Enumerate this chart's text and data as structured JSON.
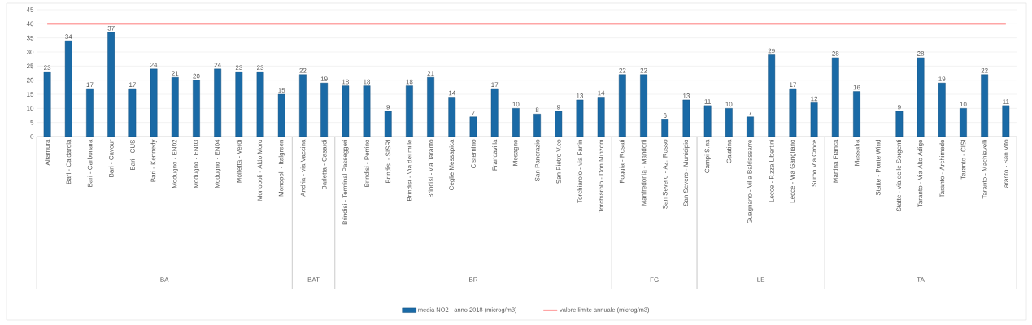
{
  "chart_data": {
    "type": "bar",
    "categories": [
      "Altamura",
      "Bari - Caldarola",
      "Bari - Carbonara",
      "Bari - Cavour",
      "Bari - CUS",
      "Bari - Kennedy",
      "Modugno - EN02",
      "Modugno - EN03",
      "Modugno - EN04",
      "Molfetta - Verdi",
      "Monopoli - Aldo Moro",
      "Monopoli - Italgreen",
      "Andria - via Vaccina",
      "Barletta - Casardi",
      "Brindisi - Terminal Passeggeri",
      "Brindisi - Perrino",
      "Brindisi - SISRI",
      "Brindisi - Via dei mille",
      "Brindisi - via Taranto",
      "Ceglie Messapica",
      "Cisternino",
      "Francavilla",
      "Mesagne",
      "San Pancrazio",
      "San Pietro V.co",
      "Torchiarolo - via Fanin",
      "Torchiarolo - Don Minzoni",
      "Foggia - Rosati",
      "Manfredonia - Mandorli",
      "San Severo - Az. Russo",
      "San Severo - Municipio",
      "Campi S.na",
      "Galatina",
      "Guagnano - Villa Baldassarre",
      "Lecce - P.zza Libertini",
      "Lecce - Via Garigliano",
      "Surbo Via Croce",
      "Martina Franca",
      "Massafra",
      "Statte - Ponte Wind",
      "Statte - via delle Sorgenti",
      "Taranto - Via Alto Adige",
      "Taranto - Archimede",
      "Taranto - CISI",
      "Taranto - Machiavelli",
      "Taranto - San Vito"
    ],
    "series": [
      {
        "name": "media NO2 - anno 2018 (microg/m3)",
        "color": "#1a6aa6",
        "values": [
          23,
          34,
          17,
          37,
          17,
          24,
          21,
          20,
          24,
          23,
          23,
          15,
          22,
          19,
          18,
          18,
          9,
          18,
          21,
          14,
          7,
          17,
          10,
          8,
          9,
          13,
          14,
          22,
          22,
          6,
          13,
          11,
          10,
          7,
          29,
          17,
          12,
          28,
          16,
          null,
          9,
          28,
          19,
          10,
          22,
          11
        ],
        "value_labels": [
          "23",
          "34",
          "17",
          "37",
          "17",
          "24",
          "21",
          "20",
          "24",
          "23",
          "23",
          "15",
          "22",
          "19",
          "18",
          "18",
          "9",
          "18",
          "21",
          "14",
          "7",
          "17",
          "10",
          "8",
          "9",
          "13",
          "14",
          "22",
          "22",
          "6",
          "13",
          "11",
          "10",
          "7",
          "29",
          "17",
          "12",
          "28",
          "16",
          null,
          "9",
          "28",
          "19",
          "10",
          "22",
          "11"
        ]
      },
      {
        "name": "valore limite annuale (microg/m3)",
        "type": "line",
        "color": "#ff5050",
        "values": [
          40,
          40,
          40,
          40,
          40,
          40,
          40,
          40,
          40,
          40,
          40,
          40,
          40,
          40,
          40,
          40,
          40,
          40,
          40,
          40,
          40,
          40,
          40,
          40,
          40,
          40,
          40,
          40,
          40,
          40,
          40,
          40,
          40,
          40,
          40,
          40,
          40,
          40,
          40,
          40,
          40,
          40,
          40,
          40,
          40,
          40
        ]
      }
    ],
    "ylim": [
      0,
      45
    ],
    "yticks": [
      0,
      5,
      10,
      15,
      20,
      25,
      30,
      35,
      40,
      45
    ],
    "grid": "y",
    "legend": "bottom",
    "marker": "none",
    "line_style": "solid",
    "annotations": [
      "BA",
      "BAT",
      "BR",
      "FG",
      "LE",
      "TA"
    ]
  }
}
